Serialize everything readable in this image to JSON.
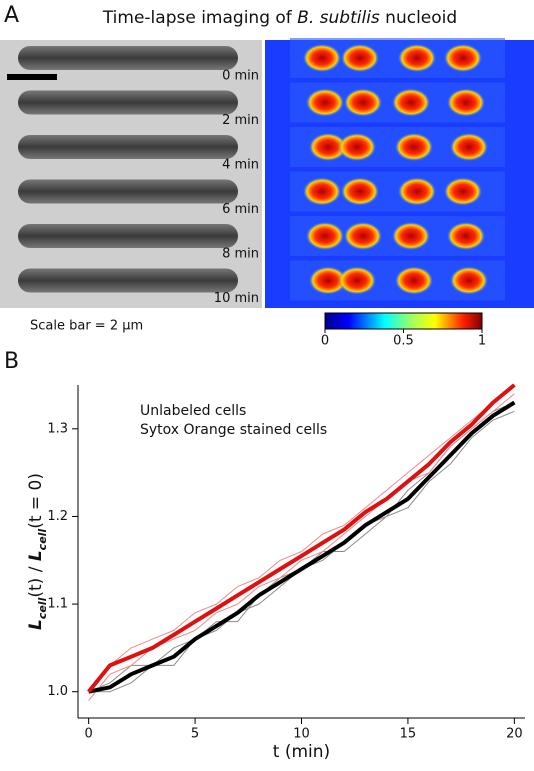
{
  "panel_a": {
    "label": "A",
    "title_parts": [
      "Time-lapse imaging of ",
      "B. subtilis",
      " nucleoid"
    ],
    "time_labels": [
      "0 min",
      "2 min",
      "4 min",
      "6 min",
      "8 min",
      "10 min"
    ],
    "scale_note": "Scale bar = 2 μm",
    "colorbar": {
      "lim": [
        0,
        1
      ],
      "ticks": [
        0,
        0.5,
        1
      ]
    }
  },
  "chart_data": {
    "type": "line",
    "label": "B",
    "xlabel": "t (min)",
    "ylabel_parts": [
      "L",
      "cell",
      "(t) / ",
      "L",
      "cell",
      "(t = 0)"
    ],
    "x": [
      0,
      1,
      2,
      3,
      4,
      5,
      6,
      7,
      8,
      9,
      10,
      11,
      12,
      13,
      14,
      15,
      16,
      17,
      18,
      19,
      20
    ],
    "xlim": [
      -0.5,
      20.5
    ],
    "xticks": [
      0,
      5,
      10,
      15,
      20
    ],
    "ylim": [
      0.97,
      1.35
    ],
    "yticks": [
      {
        "value": 1,
        "label": "1.0"
      },
      1.1,
      1.2,
      1.3
    ],
    "series": [
      {
        "color": "#8a8a8a",
        "width": 1,
        "values": [
          1.0,
          1.01,
          1.03,
          1.03,
          1.05,
          1.06,
          1.07,
          1.09,
          1.1,
          1.12,
          1.14,
          1.15,
          1.17,
          1.19,
          1.2,
          1.21,
          1.24,
          1.26,
          1.29,
          1.31,
          1.32
        ]
      },
      {
        "color": "#8a8a8a",
        "width": 1,
        "values": [
          1.0,
          1.0,
          1.01,
          1.03,
          1.03,
          1.06,
          1.08,
          1.08,
          1.11,
          1.13,
          1.14,
          1.16,
          1.16,
          1.18,
          1.2,
          1.23,
          1.25,
          1.28,
          1.3,
          1.32,
          1.33
        ]
      },
      {
        "color": "#f08a8a",
        "width": 1,
        "values": [
          1.0,
          1.03,
          1.05,
          1.06,
          1.07,
          1.09,
          1.1,
          1.12,
          1.13,
          1.15,
          1.16,
          1.18,
          1.19,
          1.21,
          1.23,
          1.25,
          1.27,
          1.29,
          1.31,
          1.33,
          1.35
        ]
      },
      {
        "color": "#f08a8a",
        "width": 1,
        "values": [
          0.99,
          1.02,
          1.03,
          1.05,
          1.06,
          1.07,
          1.09,
          1.1,
          1.12,
          1.13,
          1.15,
          1.16,
          1.18,
          1.2,
          1.22,
          1.24,
          1.25,
          1.28,
          1.3,
          1.32,
          1.34
        ]
      },
      {
        "name": "Unlabeled cells",
        "color": "#000000",
        "width": 4,
        "values": [
          1.0,
          1.005,
          1.02,
          1.03,
          1.04,
          1.06,
          1.075,
          1.09,
          1.11,
          1.125,
          1.14,
          1.155,
          1.17,
          1.19,
          1.205,
          1.22,
          1.245,
          1.27,
          1.295,
          1.315,
          1.33
        ]
      },
      {
        "name": "Sytox Orange stained cells",
        "color": "#e01010",
        "width": 4,
        "values": [
          1.0,
          1.03,
          1.04,
          1.05,
          1.065,
          1.08,
          1.095,
          1.11,
          1.125,
          1.14,
          1.155,
          1.17,
          1.185,
          1.205,
          1.22,
          1.24,
          1.26,
          1.285,
          1.305,
          1.33,
          1.35
        ]
      }
    ]
  }
}
